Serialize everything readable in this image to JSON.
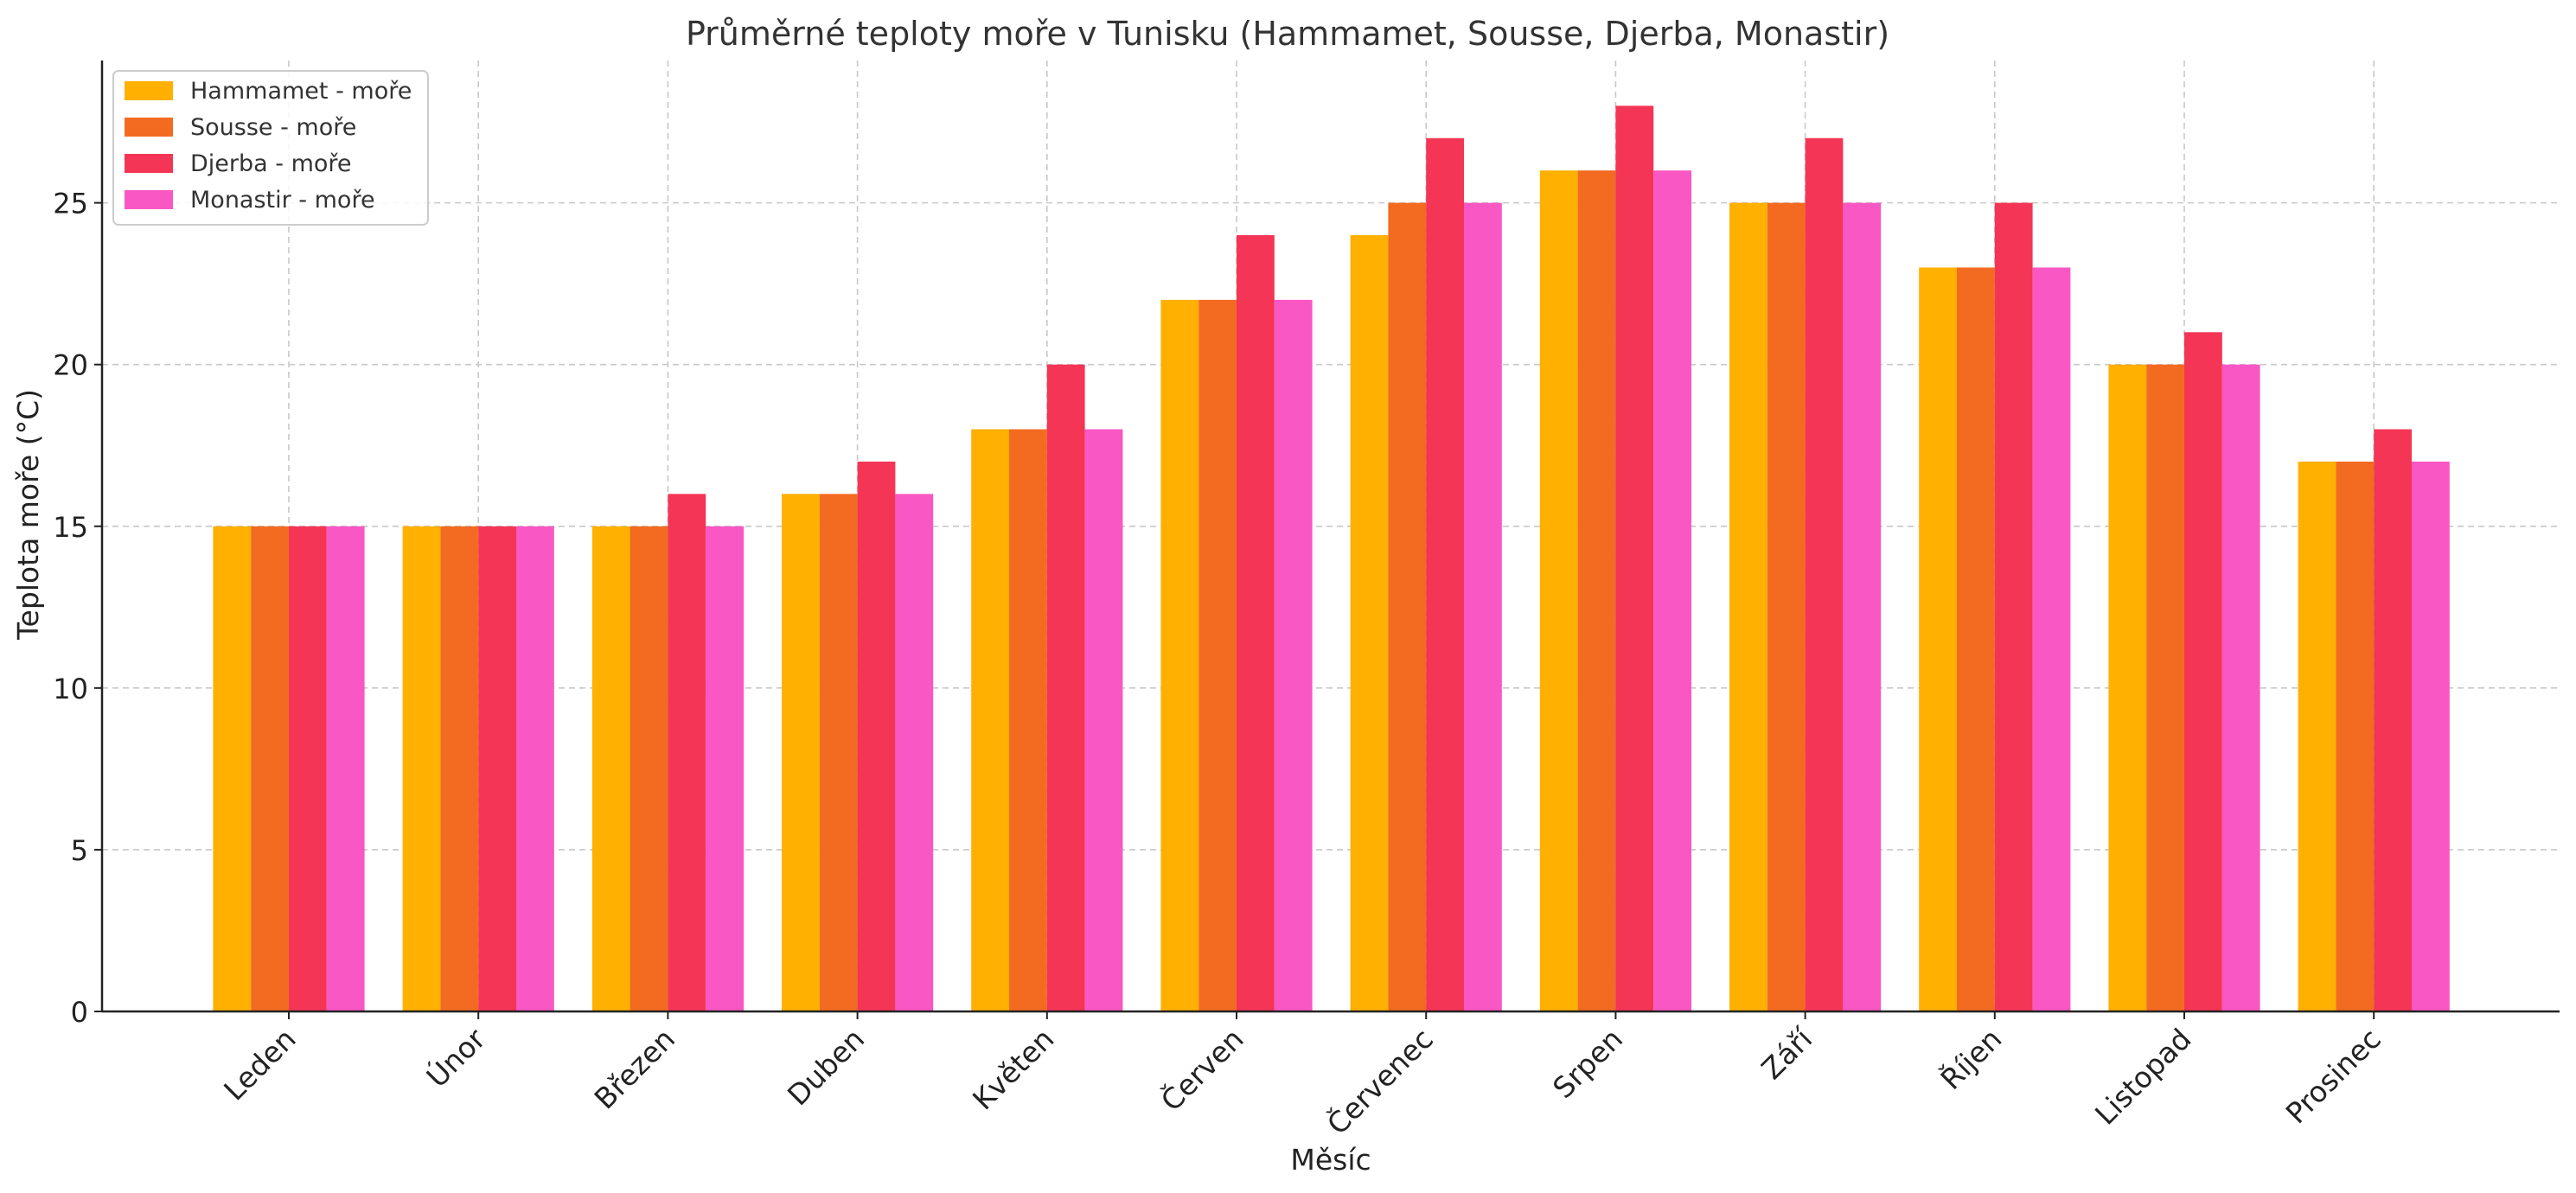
{
  "chart_data": {
    "type": "bar",
    "title": "Průměrné teploty moře v Tunisku (Hammamet, Sousse, Djerba, Monastir)",
    "xlabel": "Měsíc",
    "ylabel": "Teplota moře (°C)",
    "ylim": [
      0,
      29.4
    ],
    "yticks": [
      0,
      5,
      10,
      15,
      20,
      25
    ],
    "grid": true,
    "legend_position": "top-left",
    "categories": [
      "Leden",
      "Únor",
      "Březen",
      "Duben",
      "Květen",
      "Červen",
      "Červenec",
      "Srpen",
      "Září",
      "Říjen",
      "Listopad",
      "Prosinec"
    ],
    "series": [
      {
        "name": "Hammamet - moře",
        "color": "#FFB000",
        "values": [
          15,
          15,
          15,
          16,
          18,
          22,
          24,
          26,
          25,
          23,
          20,
          17
        ]
      },
      {
        "name": "Sousse - moře",
        "color": "#F26B21",
        "values": [
          15,
          15,
          15,
          16,
          18,
          22,
          25,
          26,
          25,
          23,
          20,
          17
        ]
      },
      {
        "name": "Djerba - moře",
        "color": "#F43555",
        "values": [
          15,
          15,
          16,
          17,
          20,
          24,
          27,
          28,
          27,
          25,
          21,
          18
        ]
      },
      {
        "name": "Monastir - moře",
        "color": "#F957C4",
        "values": [
          15,
          15,
          15,
          16,
          18,
          22,
          25,
          26,
          25,
          23,
          20,
          17
        ]
      }
    ]
  }
}
